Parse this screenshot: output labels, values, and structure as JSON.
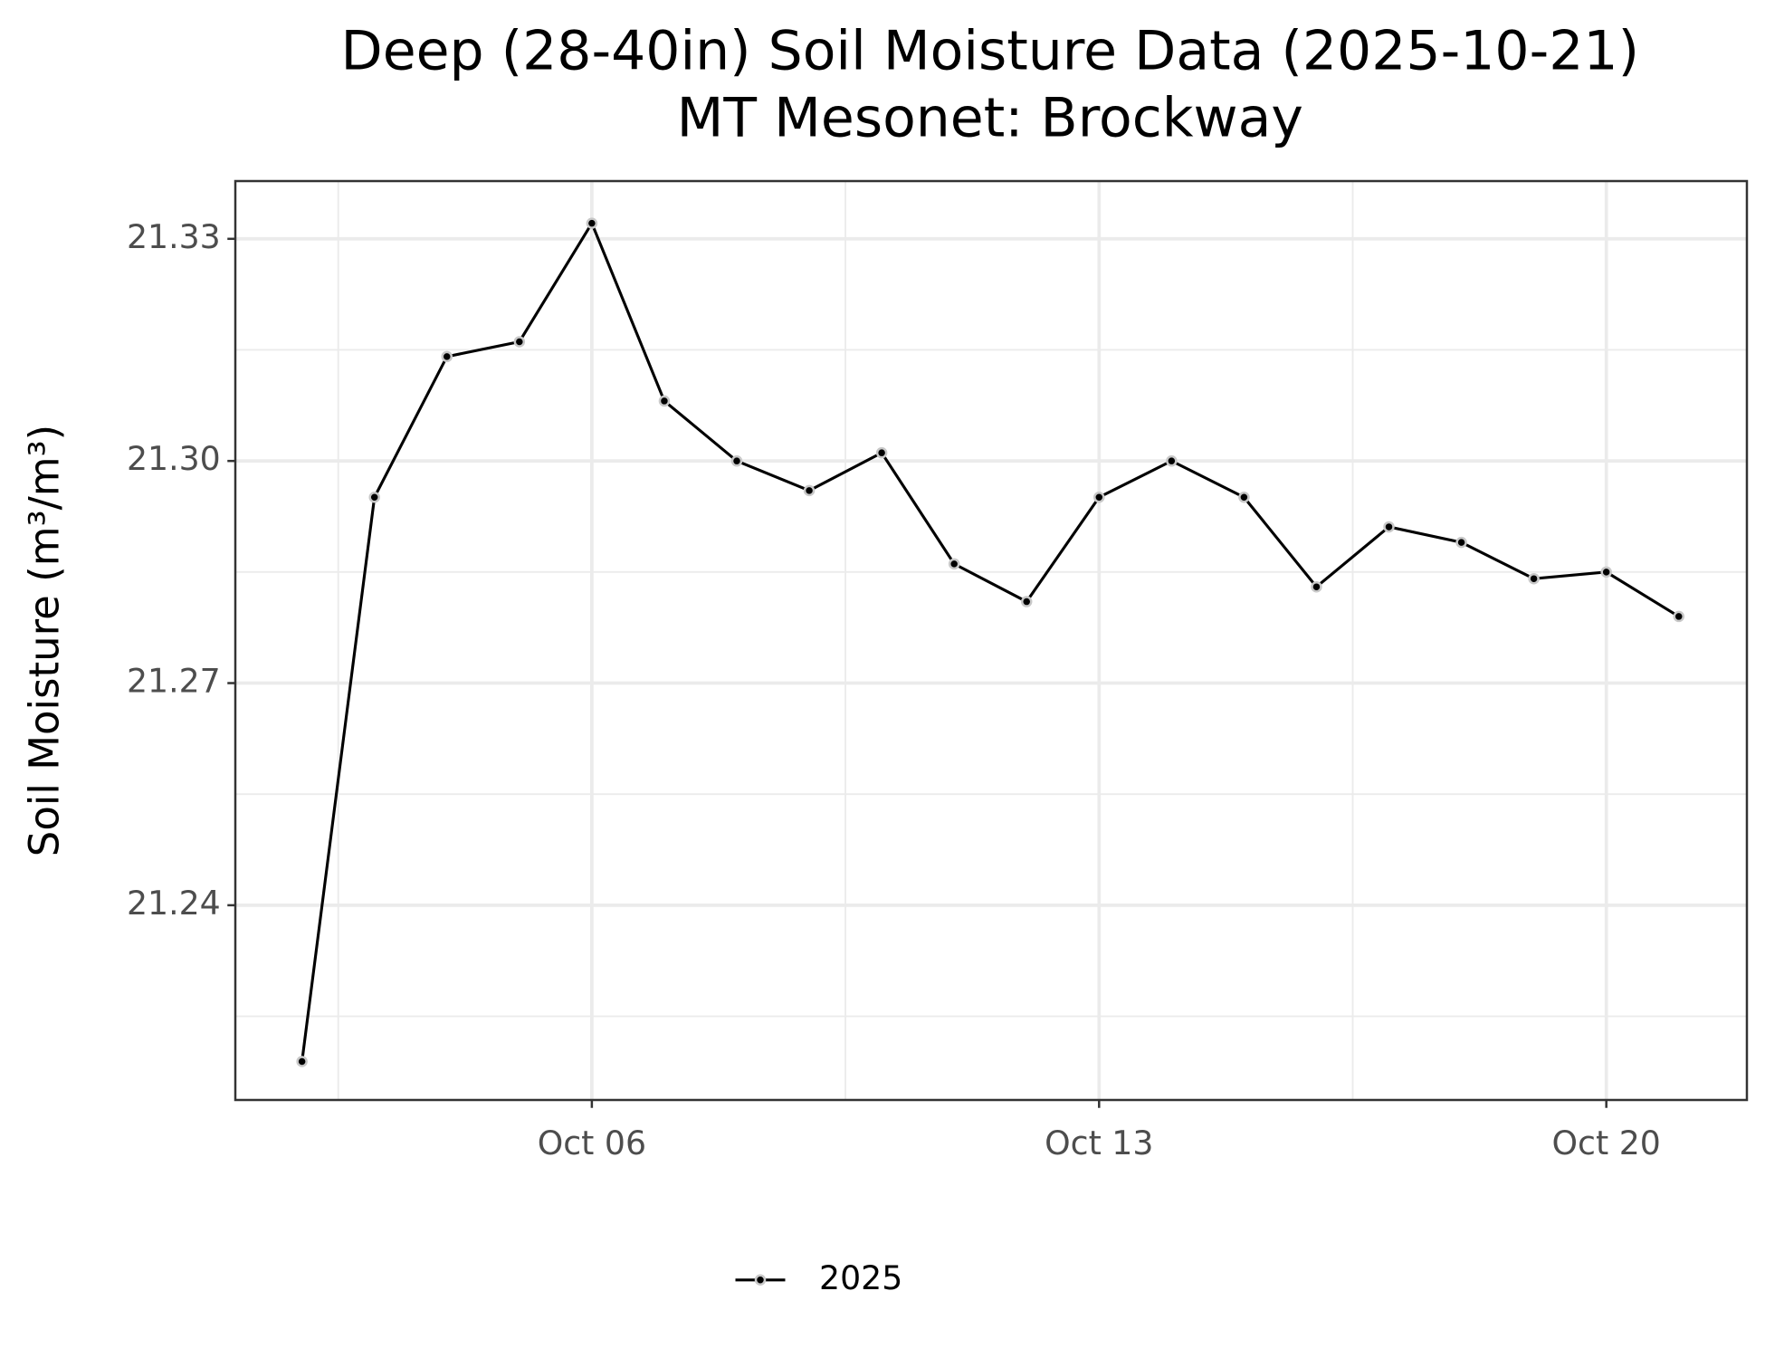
{
  "chart_data": {
    "type": "line",
    "title": "Deep (28-40in) Soil Moisture Data (2025-10-21)",
    "subtitle": "MT Mesonet: Brockway",
    "y_label": "Soil Moisture (m³/m³)",
    "x": [
      2,
      3,
      4,
      5,
      6,
      7,
      8,
      9,
      10,
      11,
      12,
      13,
      14,
      15,
      16,
      17,
      18,
      19,
      20,
      21
    ],
    "series": [
      {
        "name": "2025",
        "color": "#000000",
        "values": [
          21.2189,
          21.2951,
          21.3141,
          21.3161,
          21.3321,
          21.3081,
          21.3,
          21.296,
          21.3011,
          21.2861,
          21.281,
          21.2951,
          21.3,
          21.2951,
          21.283,
          21.2911,
          21.289,
          21.2841,
          21.285,
          21.279
        ]
      }
    ],
    "xlim": [
      1.08,
      21.94
    ],
    "xticks": [
      {
        "value": 6,
        "label": "Oct 06"
      },
      {
        "value": 13,
        "label": "Oct 13"
      },
      {
        "value": 20,
        "label": "Oct 20"
      }
    ],
    "ylim": [
      21.2137,
      21.3378
    ],
    "yticks": [
      21.24,
      21.27,
      {
        "value": 21.3,
        "label": "21.30"
      },
      21.33
    ],
    "grid": true,
    "legend": "bottom"
  }
}
